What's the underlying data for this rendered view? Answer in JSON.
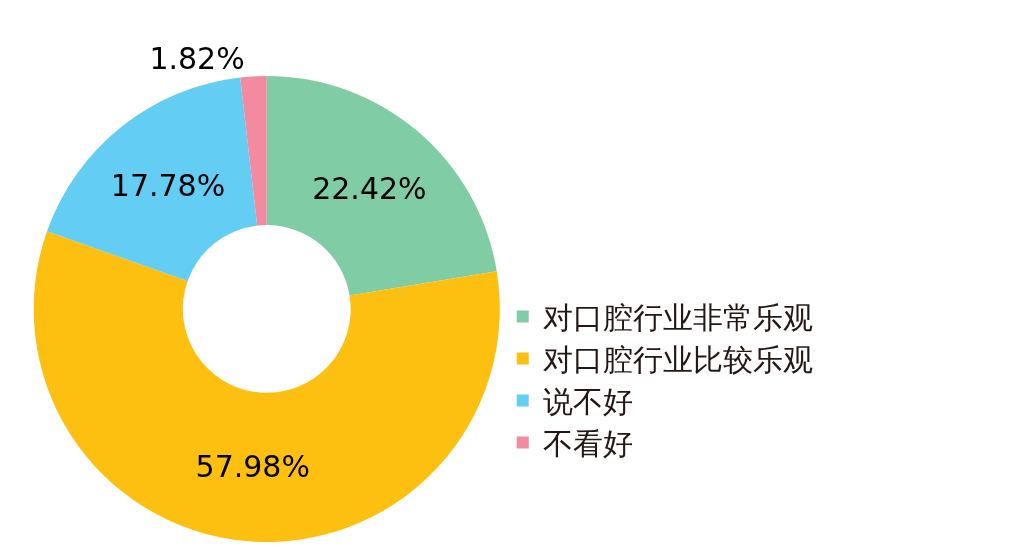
{
  "chart_data": {
    "type": "donut",
    "categories": [
      "对口腔行业非常乐观",
      "对口腔行业比较乐观",
      "说不好",
      "不看好"
    ],
    "values": [
      22.42,
      57.98,
      17.78,
      1.82
    ],
    "value_labels": [
      "22.42%",
      "57.98%",
      "17.78%",
      "1.82%"
    ],
    "colors": [
      "#80cca4",
      "#fdbf10",
      "#63cdf4",
      "#f38ba0"
    ],
    "legend": "right"
  }
}
